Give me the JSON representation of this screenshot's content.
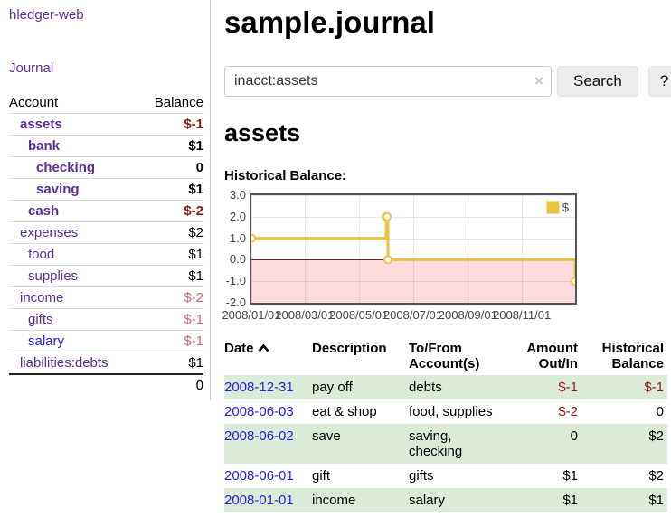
{
  "app_title": "hledger-web",
  "sidebar": {
    "journal_link": "Journal",
    "header": {
      "account": "Account",
      "balance": "Balance"
    },
    "accounts": [
      {
        "name": "assets",
        "indent": 1,
        "bold": true,
        "balance": "$-1",
        "balance_class": "neg-strong"
      },
      {
        "name": "bank",
        "indent": 2,
        "bold": true,
        "balance": "$1",
        "balance_class": ""
      },
      {
        "name": "checking",
        "indent": 3,
        "bold": true,
        "balance": "0",
        "balance_class": ""
      },
      {
        "name": "saving",
        "indent": 3,
        "bold": true,
        "balance": "$1",
        "balance_class": ""
      },
      {
        "name": "cash",
        "indent": 2,
        "bold": true,
        "balance": "$-2",
        "balance_class": "neg-strong"
      },
      {
        "name": "expenses",
        "indent": 1,
        "bold": false,
        "balance": "$2",
        "balance_class": ""
      },
      {
        "name": "food",
        "indent": 2,
        "bold": false,
        "balance": "$1",
        "balance_class": ""
      },
      {
        "name": "supplies",
        "indent": 2,
        "bold": false,
        "balance": "$1",
        "balance_class": ""
      },
      {
        "name": "income",
        "indent": 1,
        "bold": false,
        "balance": "$-2",
        "balance_class": "neg-soft"
      },
      {
        "name": "gifts",
        "indent": 2,
        "bold": false,
        "balance": "$-1",
        "balance_class": "neg-soft"
      },
      {
        "name": "salary",
        "indent": 2,
        "bold": false,
        "balance": "$-1",
        "balance_class": "neg-soft",
        "link_class": "blue"
      },
      {
        "name": "liabilities:debts",
        "indent": 1,
        "bold": false,
        "balance": "$1",
        "balance_class": ""
      }
    ],
    "total": "0"
  },
  "main": {
    "title": "sample.journal",
    "search": {
      "value": "inacct:assets",
      "clear_label": "×",
      "search_button": "Search",
      "help_button": "?"
    },
    "account_heading": "assets",
    "section_label": "Historical Balance:"
  },
  "chart_data": {
    "type": "line",
    "step": true,
    "title": "Historical Balance",
    "legend": [
      {
        "label": "$",
        "color": "#EDC240"
      }
    ],
    "legend_position": "top-right",
    "grid": true,
    "ylim": [
      -2,
      3
    ],
    "yticks": [
      3,
      2,
      1,
      0,
      -1,
      -2
    ],
    "ytick_labels": [
      "3.0",
      "2.0",
      "1.0",
      "0.0",
      "-1.0",
      "-2.0"
    ],
    "xticks": [
      "2008/01/01",
      "2008/03/01",
      "2008/05/01",
      "2008/07/01",
      "2008/09/01",
      "2008/11/01"
    ],
    "x_range": [
      "2008/01/01",
      "2008/12/31"
    ],
    "series": [
      {
        "name": "$",
        "color": "#EDC240",
        "points": [
          [
            "2008/01/01",
            1
          ],
          [
            "2008/06/01",
            2
          ],
          [
            "2008/06/02",
            2
          ],
          [
            "2008/06/03",
            0
          ],
          [
            "2008/12/31",
            -1
          ]
        ]
      }
    ],
    "negative_region_color": "#fbdbdc",
    "zero_line_color": "#8b1a1a"
  },
  "register": {
    "columns": [
      "Date",
      "Description",
      "To/From Account(s)",
      "Amount Out/In",
      "Historical Balance"
    ],
    "sort_icon": "chevron-up",
    "rows": [
      {
        "date": "2008-12-31",
        "description": "pay off",
        "accounts": "debts",
        "amount": "$-1",
        "amount_class": "neg-strong",
        "balance": "$-1",
        "balance_class": "neg-strong",
        "shaded": true
      },
      {
        "date": "2008-06-03",
        "description": "eat & shop",
        "accounts": "food, supplies",
        "amount": "$-2",
        "amount_class": "neg-strong",
        "balance": "0",
        "balance_class": "",
        "shaded": false
      },
      {
        "date": "2008-06-02",
        "description": "save",
        "accounts": "saving, checking",
        "amount": "0",
        "amount_class": "",
        "balance": "$2",
        "balance_class": "",
        "shaded": true
      },
      {
        "date": "2008-06-01",
        "description": "gift",
        "accounts": "gifts",
        "amount": "$1",
        "amount_class": "",
        "balance": "$2",
        "balance_class": "",
        "shaded": false
      },
      {
        "date": "2008-01-01",
        "description": "income",
        "accounts": "salary",
        "amount": "$1",
        "amount_class": "",
        "balance": "$1",
        "balance_class": "",
        "shaded": true
      }
    ]
  }
}
